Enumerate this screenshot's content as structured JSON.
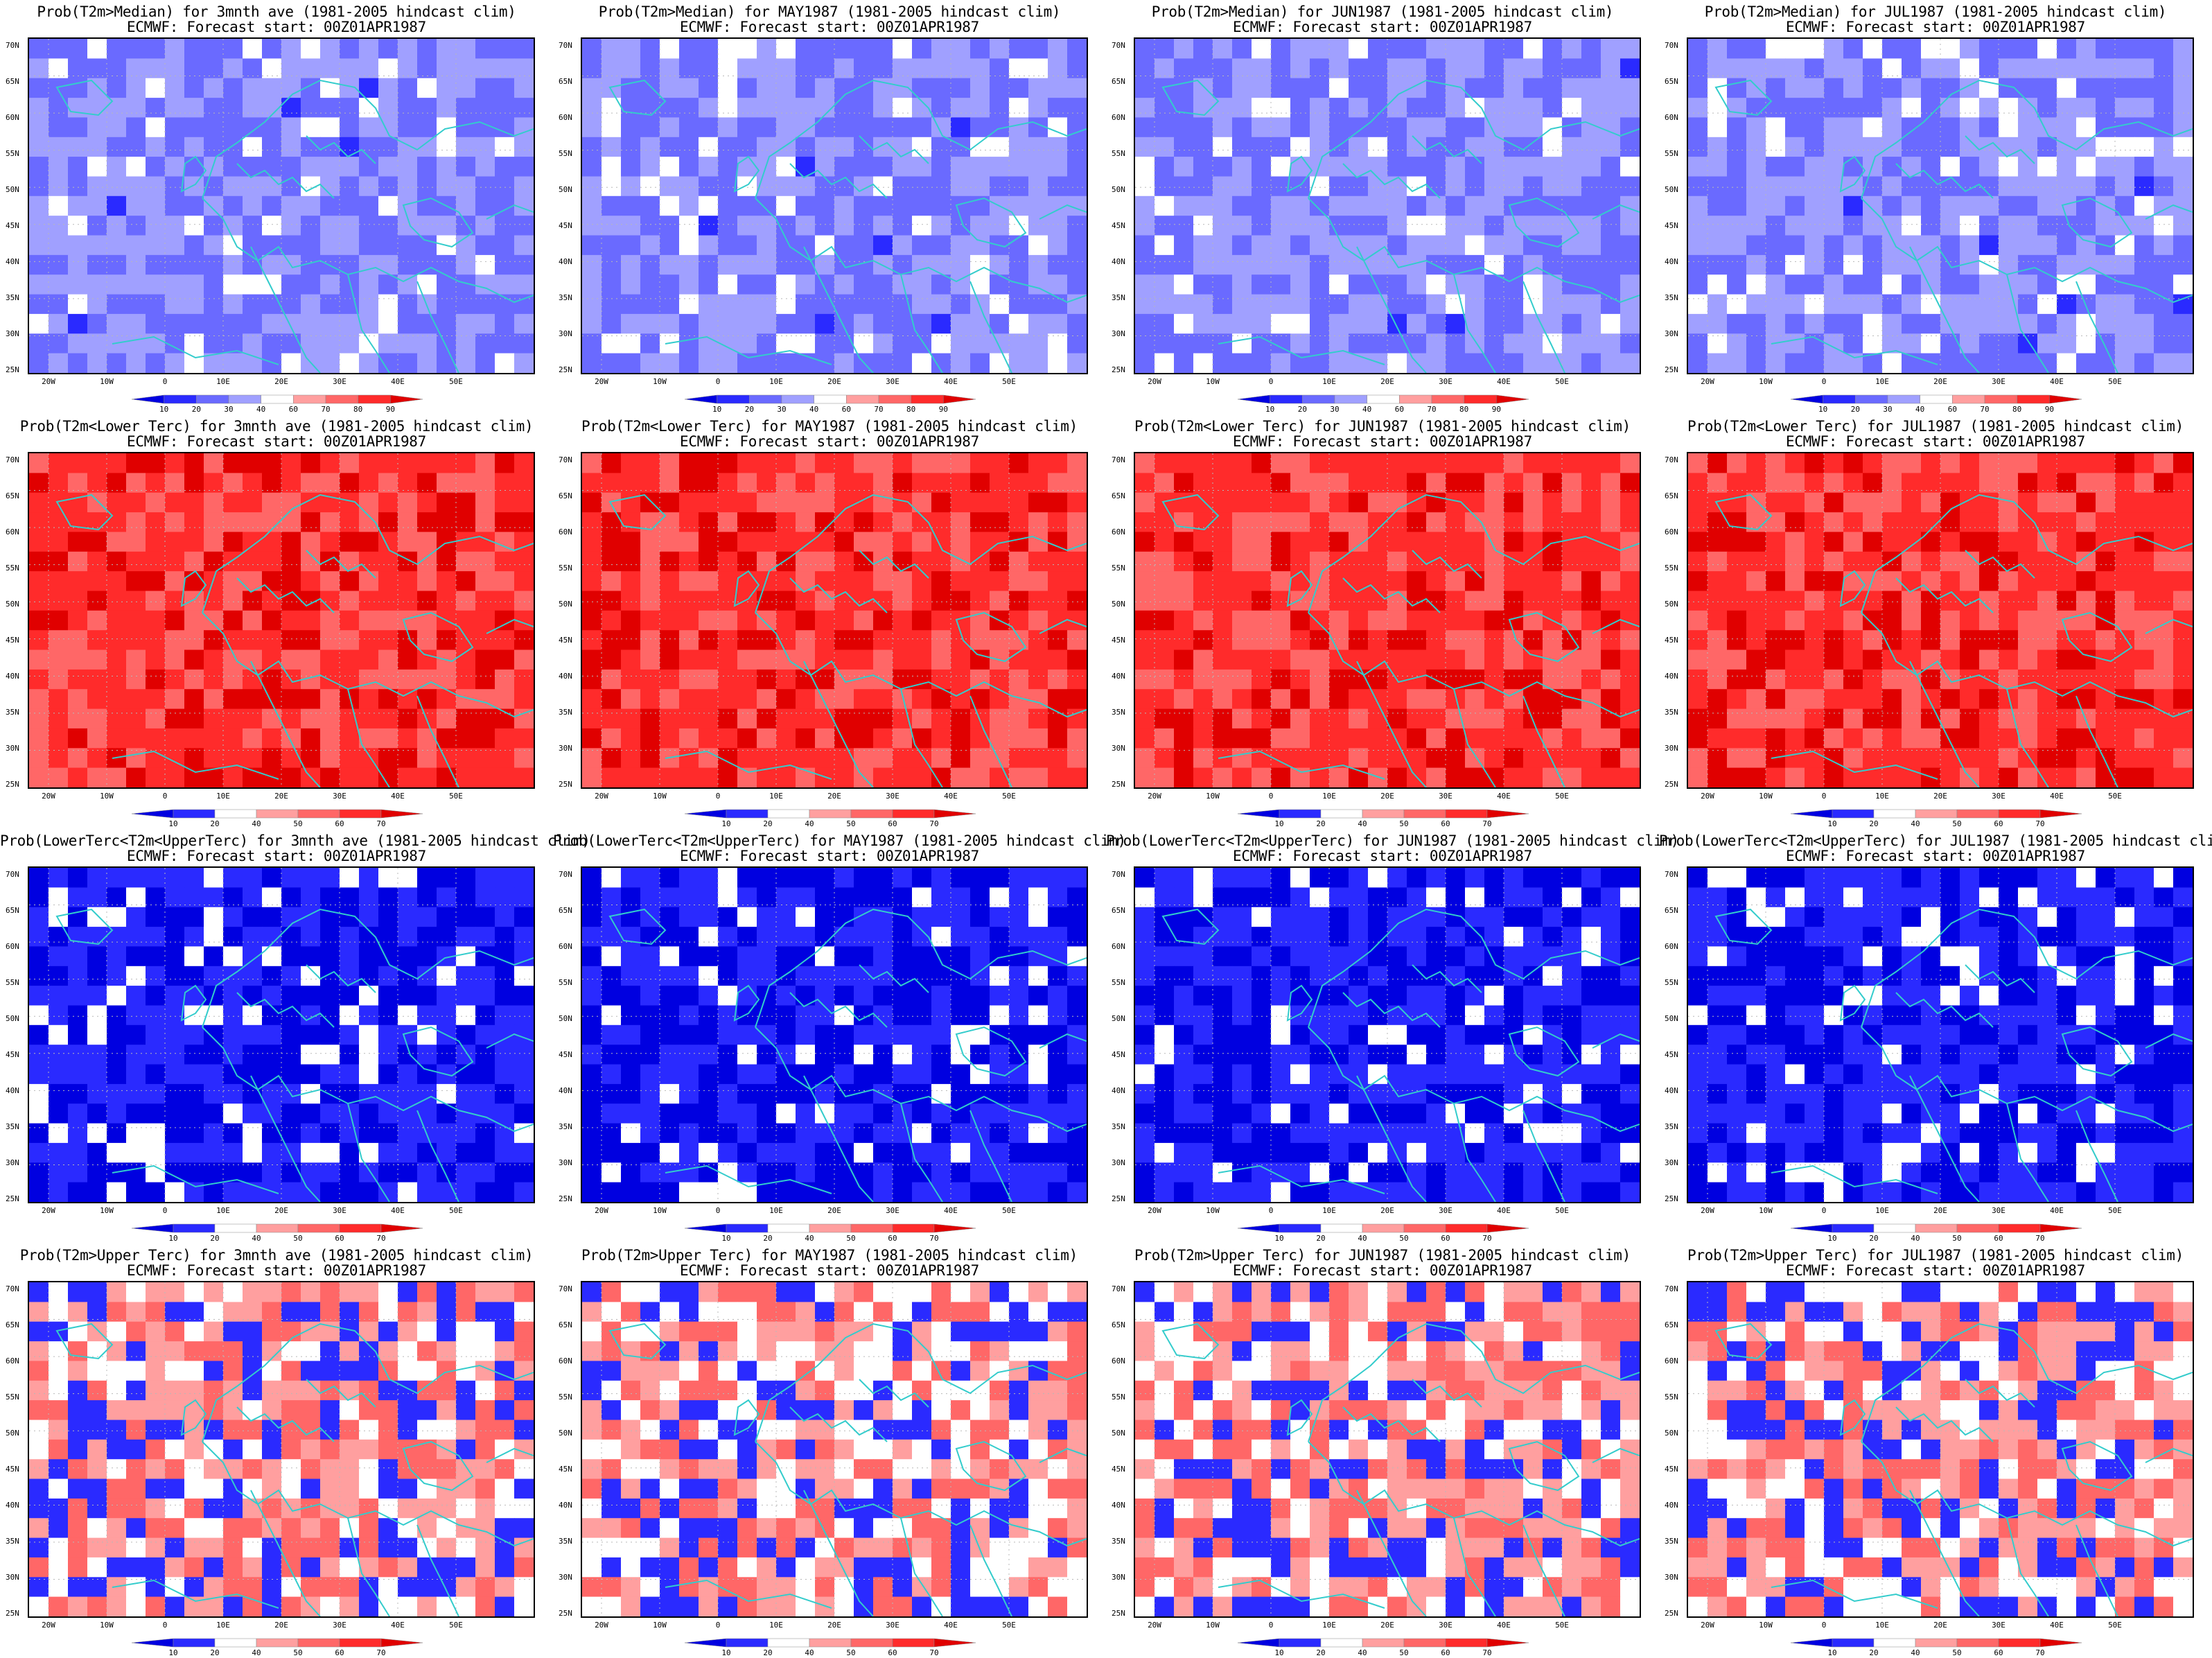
{
  "variables": [
    "Prob(T2m>Median)",
    "Prob(T2m<Lower Terc)",
    "Prob(LowerTerc<T2m<UpperTerc)",
    "Prob(T2m>Upper Terc)"
  ],
  "periods": [
    "3mnth ave",
    "MAY1987",
    "JUN1987",
    "JUL1987"
  ],
  "panels": [
    {
      "title": "Prob(T2m>Median) for 3mnth ave (1981-2005 hindcast clim)",
      "subtitle": "ECMWF: Forecast start: 00Z01APR1987"
    },
    {
      "title": "Prob(T2m>Median) for MAY1987 (1981-2005 hindcast clim)",
      "subtitle": "ECMWF: Forecast start: 00Z01APR1987"
    },
    {
      "title": "Prob(T2m>Median) for JUN1987 (1981-2005 hindcast clim)",
      "subtitle": "ECMWF: Forecast start: 00Z01APR1987"
    },
    {
      "title": "Prob(T2m>Median) for JUL1987 (1981-2005 hindcast clim)",
      "subtitle": "ECMWF: Forecast start: 00Z01APR1987"
    },
    {
      "title": "Prob(T2m<Lower Terc) for 3mnth ave (1981-2005 hindcast clim)",
      "subtitle": "ECMWF: Forecast start: 00Z01APR1987"
    },
    {
      "title": "Prob(T2m<Lower Terc) for MAY1987 (1981-2005 hindcast clim)",
      "subtitle": "ECMWF: Forecast start: 00Z01APR1987"
    },
    {
      "title": "Prob(T2m<Lower Terc) for JUN1987 (1981-2005 hindcast clim)",
      "subtitle": "ECMWF: Forecast start: 00Z01APR1987"
    },
    {
      "title": "Prob(T2m<Lower Terc) for JUL1987 (1981-2005 hindcast clim)",
      "subtitle": "ECMWF: Forecast start: 00Z01APR1987"
    },
    {
      "title": "Prob(LowerTerc<T2m<UpperTerc) for 3mnth ave (1981-2005 hindcast clim)",
      "subtitle": "ECMWF: Forecast start: 00Z01APR1987"
    },
    {
      "title": "Prob(LowerTerc<T2m<UpperTerc) for MAY1987 (1981-2005 hindcast clim)",
      "subtitle": "ECMWF: Forecast start: 00Z01APR1987"
    },
    {
      "title": "Prob(LowerTerc<T2m<UpperTerc) for JUN1987 (1981-2005 hindcast clim)",
      "subtitle": "ECMWF: Forecast start: 00Z01APR1987"
    },
    {
      "title": "Prob(LowerTerc<T2m<UpperTerc) for JUL1987 (1981-2005 hindcast clim)",
      "subtitle": "ECMWF: Forecast start: 00Z01APR1987"
    },
    {
      "title": "Prob(T2m>Upper Terc) for 3mnth ave (1981-2005 hindcast clim)",
      "subtitle": "ECMWF: Forecast start: 00Z01APR1987"
    },
    {
      "title": "Prob(T2m>Upper Terc) for MAY1987 (1981-2005 hindcast clim)",
      "subtitle": "ECMWF: Forecast start: 00Z01APR1987"
    },
    {
      "title": "Prob(T2m>Upper Terc) for JUN1987 (1981-2005 hindcast clim)",
      "subtitle": "ECMWF: Forecast start: 00Z01APR1987"
    },
    {
      "title": "Prob(T2m>Upper Terc) for JUL1987 (1981-2005 hindcast clim)",
      "subtitle": "ECMWF: Forecast start: 00Z01APR1987"
    }
  ],
  "lat_labels": [
    "70N",
    "65N",
    "60N",
    "55N",
    "50N",
    "45N",
    "40N",
    "35N",
    "30N",
    "25N"
  ],
  "lon_labels": [
    "20W",
    "10W",
    "0",
    "10E",
    "20E",
    "30E",
    "40E",
    "50E"
  ],
  "colorbars": {
    "median": {
      "labels": [
        "10",
        "20",
        "30",
        "40",
        "60",
        "70",
        "80",
        "90"
      ],
      "colors": [
        "#0000e0",
        "#2a2aff",
        "#6a6aff",
        "#a0a0ff",
        "#ffffff",
        "#ff9f9f",
        "#ff6767",
        "#ff2b2b",
        "#e00000"
      ]
    },
    "tercile": {
      "labels": [
        "10",
        "20",
        "40",
        "50",
        "60",
        "70"
      ],
      "colors": [
        "#0000e0",
        "#2a2aff",
        "#ffffff",
        "#ff9f9f",
        "#ff6767",
        "#ff2b2b",
        "#e00000"
      ]
    }
  },
  "colors": {
    "coastline": "#33cccc",
    "grid": "#b8b8b8"
  }
}
